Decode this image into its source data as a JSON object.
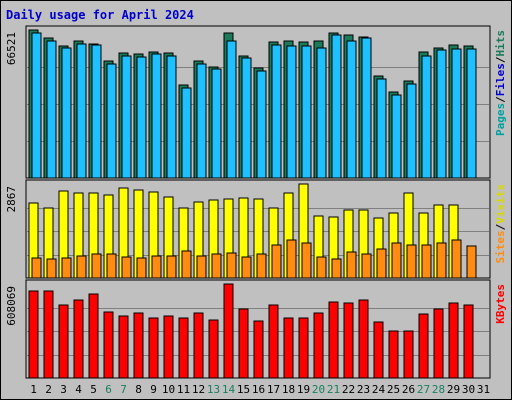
{
  "title": "Daily usage for April 2024",
  "colors": {
    "pages": "#1a7a5a",
    "files": "#1ec0ff",
    "visits": "#ffff00",
    "sites": "#ff8c10",
    "kbytes": "#ff0000",
    "weekday_label": "#000000",
    "weekend_label": "#1a8060"
  },
  "chart_data": {
    "type": "bar",
    "x": [
      1,
      2,
      3,
      4,
      5,
      6,
      7,
      8,
      9,
      10,
      11,
      12,
      13,
      14,
      15,
      16,
      17,
      18,
      19,
      20,
      21,
      22,
      23,
      24,
      25,
      26,
      27,
      28,
      29,
      30,
      31
    ],
    "weekend_days": [
      6,
      7,
      13,
      14,
      20,
      21,
      27,
      28
    ],
    "panels": [
      {
        "name": "hits",
        "max_label": "66521",
        "ymax": 66521,
        "legend": [
          {
            "text": "Pages",
            "color": "#00a0a0"
          },
          {
            "text": "/",
            "color": "#000000"
          },
          {
            "text": "Files",
            "color": "#0000cc"
          },
          {
            "text": "/",
            "color": "#000000"
          },
          {
            "text": "Hits",
            "color": "#1a7a5a"
          }
        ],
        "series": [
          {
            "name": "Hits",
            "color": "#1a7a5a",
            "values": [
              66521,
              62871,
              59221,
              61655,
              60438,
              52529,
              56178,
              55570,
              56786,
              56178,
              41576,
              52529,
              50096,
              65305,
              54962,
              49487,
              61046,
              61655,
              61046,
              61655,
              65305,
              64088,
              63480,
              45834,
              38533,
              43400,
              56786,
              58612,
              59829,
              59221,
              0
            ]
          },
          {
            "name": "Files",
            "color": "#1ec0ff",
            "values": [
              65305,
              61655,
              58612,
              60438,
              59829,
              51312,
              54962,
              54354,
              55570,
              54962,
              40359,
              51312,
              48879,
              61655,
              53745,
              48270,
              59829,
              59221,
              59221,
              58612,
              64088,
              61655,
              62871,
              44617,
              37316,
              42183,
              54962,
              57395,
              58004,
              58004,
              0
            ]
          },
          {
            "name": "Pages",
            "color": "#00a0a0",
            "values": [
              0,
              0,
              0,
              0,
              0,
              0,
              0,
              0,
              0,
              0,
              0,
              0,
              0,
              0,
              0,
              0,
              0,
              0,
              0,
              0,
              0,
              0,
              0,
              0,
              0,
              0,
              0,
              0,
              0,
              0,
              0
            ]
          }
        ]
      },
      {
        "name": "visits",
        "max_label": "2867",
        "ymax": 2867,
        "legend": [
          {
            "text": "Sites",
            "color": "#ff8c10"
          },
          {
            "text": "/",
            "color": "#000000"
          },
          {
            "text": "Visits",
            "color": "#d8d800"
          }
        ],
        "series": [
          {
            "name": "Visits",
            "color": "#ffff00",
            "values": [
              2293,
              2150,
              2652,
              2580,
              2580,
              2544,
              2759,
              2687,
              2615,
              2472,
              2150,
              2329,
              2365,
              2401,
              2437,
              2401,
              2150,
              2580,
              2867,
              1906,
              1871,
              2078,
              2078,
              1835,
              1978,
              2580,
              1978,
              2222,
              2222,
              0,
              0
            ]
          },
          {
            "name": "Sites",
            "color": "#ff8c10",
            "values": [
              609,
              574,
              609,
              681,
              717,
              717,
              645,
              609,
              681,
              681,
              824,
              681,
              717,
              753,
              645,
              717,
              1004,
              1147,
              1075,
              645,
              574,
              788,
              717,
              896,
              1075,
              1004,
              1004,
              1075,
              1147,
              967,
              0
            ]
          }
        ]
      },
      {
        "name": "kbytes",
        "max_label": "608069",
        "ymax": 608069,
        "legend": [
          {
            "text": "KBytes",
            "color": "#ff0000"
          }
        ],
        "series": [
          {
            "name": "KBytes",
            "color": "#ff0000",
            "values": [
              566000,
              566000,
              470000,
              506000,
              542000,
              426000,
              398000,
              422000,
              386000,
              398000,
              386000,
              422000,
              374000,
              608069,
              446000,
              366000,
              470000,
              386000,
              386000,
              422000,
              494000,
              482000,
              506000,
              362000,
              302000,
              306000,
              414000,
              446000,
              482000,
              470000,
              0
            ]
          }
        ]
      }
    ]
  }
}
